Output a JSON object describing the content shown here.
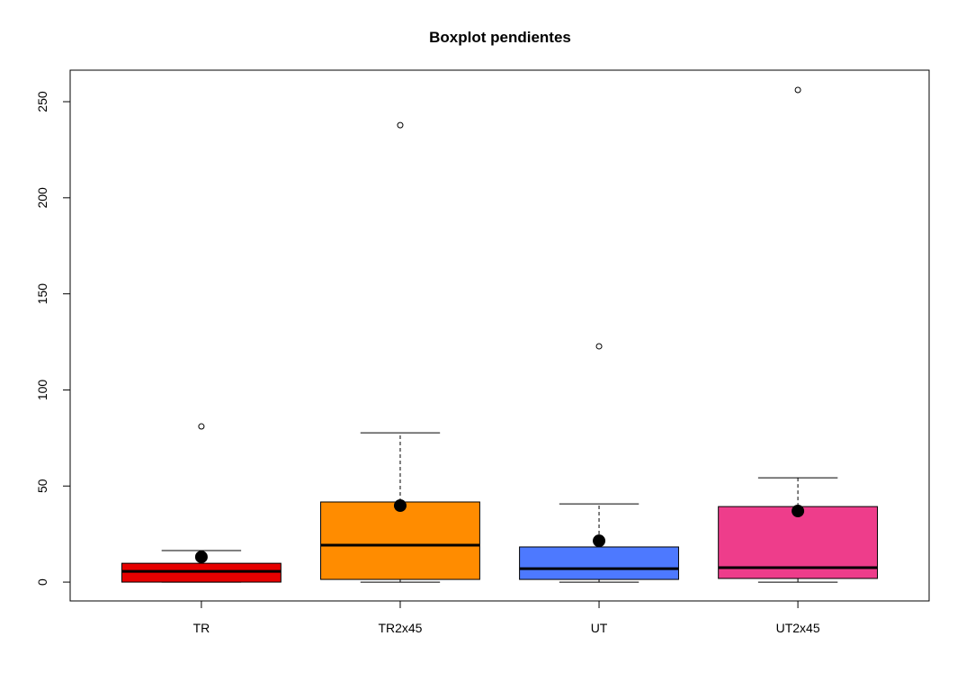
{
  "chart_data": {
    "type": "box",
    "title": "Boxplot pendientes",
    "categories": [
      "TR",
      "TR2x45",
      "UT",
      "UT2x45"
    ],
    "colors": [
      "#e60000",
      "#ff8c00",
      "#4d79ff",
      "#ee3d8b"
    ],
    "boxes": [
      {
        "min": 0,
        "q1": 0,
        "median": 5.6,
        "q3": 9.8,
        "max": 16.4,
        "mean": 13.1,
        "outliers": [
          81
        ]
      },
      {
        "min": 0,
        "q1": 1.4,
        "median": 19.2,
        "q3": 41.7,
        "max": 77.7,
        "mean": 39.8,
        "outliers": [
          237.8
        ]
      },
      {
        "min": 0,
        "q1": 1.4,
        "median": 7.0,
        "q3": 18.3,
        "max": 40.7,
        "mean": 21.5,
        "outliers": [
          122.7
        ]
      },
      {
        "min": 0,
        "q1": 1.9,
        "median": 7.5,
        "q3": 39.3,
        "max": 54.3,
        "mean": 37.0,
        "outliers": [
          256.1
        ]
      }
    ],
    "ylim": [
      -9.8,
      266.4
    ],
    "yticks": [
      0,
      50,
      100,
      150,
      200,
      250
    ]
  }
}
